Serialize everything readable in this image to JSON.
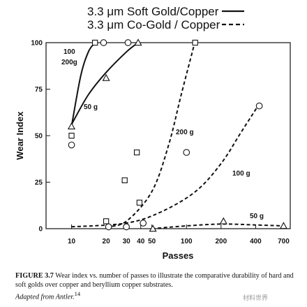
{
  "chart_data": {
    "type": "line",
    "legend": {
      "placement": "top",
      "entries": [
        {
          "label": "3.3 μm Soft Gold/Copper",
          "style": "solid"
        },
        {
          "label": "3.3 μm Co-Gold / Copper",
          "style": "dashed"
        }
      ]
    },
    "xlabel": "Passes",
    "ylabel": "Wear Index",
    "x_scale": "log",
    "xlim": [
      6,
      800
    ],
    "ylim": [
      0,
      100
    ],
    "x_ticks": [
      10,
      20,
      30,
      40,
      50,
      100,
      200,
      400,
      700
    ],
    "x_tick_labels": [
      "10",
      "20",
      "30",
      "40",
      "50",
      "100",
      "200",
      "400",
      "700"
    ],
    "y_ticks": [
      0,
      25,
      50,
      75,
      100
    ],
    "y_tick_labels": [
      "0",
      "25",
      "50",
      "75",
      "100"
    ],
    "grid": false,
    "curves": [
      {
        "label": "100",
        "style": "solid",
        "points": [
          [
            10,
            55
          ],
          [
            12,
            82
          ],
          [
            14,
            95
          ],
          [
            16,
            100
          ]
        ]
      },
      {
        "label": "200g",
        "style": "solid",
        "points": [
          [
            10,
            56
          ],
          [
            14,
            72
          ],
          [
            20,
            84
          ],
          [
            30,
            95
          ],
          [
            38,
            100
          ]
        ]
      },
      {
        "label": "50 g",
        "style": "solid",
        "points": []
      },
      {
        "label": "200 g",
        "style": "dashed",
        "points": [
          [
            20,
            1
          ],
          [
            30,
            4
          ],
          [
            50,
            20
          ],
          [
            70,
            45
          ],
          [
            90,
            72
          ],
          [
            118,
            100
          ]
        ]
      },
      {
        "label": "100 g",
        "style": "dashed",
        "points": [
          [
            10,
            1
          ],
          [
            30,
            3
          ],
          [
            60,
            9
          ],
          [
            120,
            20
          ],
          [
            200,
            35
          ],
          [
            300,
            52
          ],
          [
            440,
            68
          ]
        ]
      },
      {
        "label": "50 g",
        "style": "dashed",
        "points": [
          [
            50,
            0
          ],
          [
            100,
            1.5
          ],
          [
            200,
            2.5
          ],
          [
            400,
            2
          ],
          [
            700,
            1.5
          ]
        ]
      }
    ],
    "markers": [
      {
        "shape": "square",
        "x": 16,
        "y": 100
      },
      {
        "shape": "circle",
        "x": 19,
        "y": 100
      },
      {
        "shape": "circle",
        "x": 31,
        "y": 100
      },
      {
        "shape": "triangle",
        "x": 38,
        "y": 100
      },
      {
        "shape": "triangle",
        "x": 20,
        "y": 81
      },
      {
        "shape": "triangle",
        "x": 10,
        "y": 55
      },
      {
        "shape": "square",
        "x": 10,
        "y": 50
      },
      {
        "shape": "circle",
        "x": 10,
        "y": 45
      },
      {
        "shape": "square",
        "x": 119,
        "y": 100
      },
      {
        "shape": "circle",
        "x": 430,
        "y": 66
      },
      {
        "shape": "square",
        "x": 37,
        "y": 41
      },
      {
        "shape": "circle",
        "x": 100,
        "y": 41
      },
      {
        "shape": "square",
        "x": 29,
        "y": 26
      },
      {
        "shape": "square",
        "x": 39,
        "y": 14
      },
      {
        "shape": "square",
        "x": 20,
        "y": 4
      },
      {
        "shape": "circle",
        "x": 21,
        "y": 1
      },
      {
        "shape": "circle",
        "x": 30,
        "y": 1
      },
      {
        "shape": "circle",
        "x": 42,
        "y": 3
      },
      {
        "shape": "triangle",
        "x": 51,
        "y": 0
      },
      {
        "shape": "triangle",
        "x": 210,
        "y": 4
      },
      {
        "shape": "triangle",
        "x": 700,
        "y": 1.5
      }
    ]
  },
  "annotations": {
    "a100": "100",
    "a200g": "200g",
    "a50g_solid": "50 g",
    "a200g_dashed": "200 g",
    "a100g_dashed": "100 g",
    "a50g_dashed": "50 g"
  },
  "caption": {
    "label": "FIGURE 3.7",
    "text": "Wear index vs. number of passes to illustrate the comparative durability of hard and soft golds over copper and beryllium copper substrates.",
    "adapted": "Adapted from Antler.",
    "superscript": "14"
  },
  "watermark": "材料世界"
}
